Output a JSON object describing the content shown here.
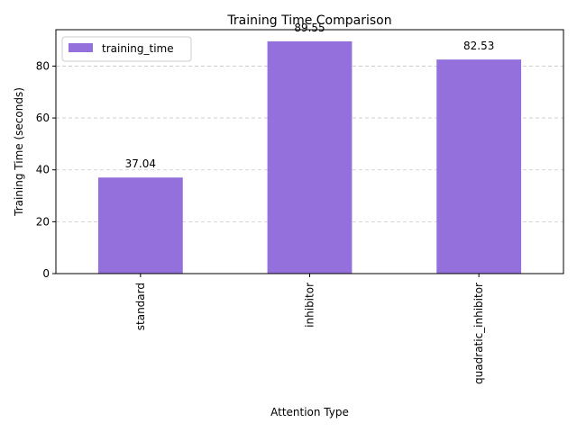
{
  "chart_data": {
    "type": "bar",
    "title": "Training Time Comparison",
    "xlabel": "Attention Type",
    "ylabel": "Training Time (seconds)",
    "categories": [
      "standard",
      "inhibitor",
      "quadratic_inhibitor"
    ],
    "series": [
      {
        "name": "training_time",
        "values": [
          37.04,
          89.55,
          82.53
        ],
        "color": "#9370db"
      }
    ],
    "data_labels": [
      "37.04",
      "89.55",
      "82.53"
    ],
    "ylim": [
      0,
      94.03
    ],
    "yticks": [
      0,
      20,
      40,
      60,
      80
    ],
    "ytick_labels": [
      "0",
      "20",
      "40",
      "60",
      "80"
    ],
    "grid": "y-dashed",
    "legend_position": "top-left",
    "xtick_rotation": 90
  }
}
